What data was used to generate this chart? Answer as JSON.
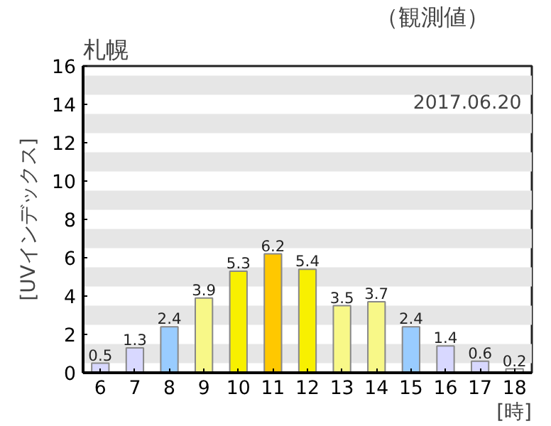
{
  "chart_data": {
    "type": "bar",
    "title": "札幌",
    "subtitle": "（観測値）",
    "xlabel": "[時]",
    "ylabel": "[UVインデックス]",
    "annotations": [
      "2017.06.20"
    ],
    "categories": [
      "6",
      "7",
      "8",
      "9",
      "10",
      "11",
      "12",
      "13",
      "14",
      "15",
      "16",
      "17",
      "18"
    ],
    "values": [
      0.5,
      1.3,
      2.4,
      3.9,
      5.3,
      6.2,
      5.4,
      3.5,
      3.7,
      2.4,
      1.4,
      0.6,
      0.2
    ],
    "colors": [
      "#d8d8ff",
      "#d8d8ff",
      "#99ccff",
      "#f8f888",
      "#f8f000",
      "#ffc800",
      "#f8f000",
      "#f8f888",
      "#f8f888",
      "#99ccff",
      "#d8d8ff",
      "#d8d8ff",
      "#ffffff"
    ],
    "data_labels": true,
    "ylim": [
      0,
      16
    ],
    "yticks": [
      0,
      2,
      4,
      6,
      8,
      10,
      12,
      14,
      16
    ],
    "bands": [
      {
        "axis": "y",
        "from": 0.5,
        "to": 1.5,
        "color": "#e6e6e6"
      },
      {
        "axis": "y",
        "from": 2.5,
        "to": 3.5,
        "color": "#e6e6e6"
      },
      {
        "axis": "y",
        "from": 4.5,
        "to": 5.5,
        "color": "#e6e6e6"
      },
      {
        "axis": "y",
        "from": 6.5,
        "to": 7.5,
        "color": "#e6e6e6"
      },
      {
        "axis": "y",
        "from": 8.5,
        "to": 9.5,
        "color": "#e6e6e6"
      },
      {
        "axis": "y",
        "from": 10.5,
        "to": 11.5,
        "color": "#e6e6e6"
      },
      {
        "axis": "y",
        "from": 12.5,
        "to": 13.5,
        "color": "#e6e6e6"
      },
      {
        "axis": "y",
        "from": 14.5,
        "to": 15.5,
        "color": "#e6e6e6"
      }
    ],
    "grid": false
  }
}
